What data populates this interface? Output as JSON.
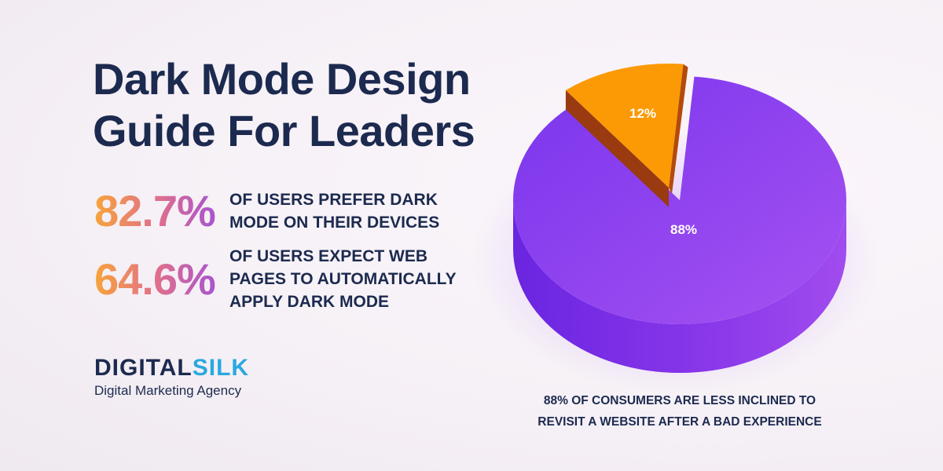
{
  "title_lines": [
    "Dark Mode Design",
    "Guide For Leaders"
  ],
  "stats": [
    {
      "value": "82.7%",
      "lines": [
        "OF USERS PREFER DARK",
        "MODE ON THEIR DEVICES"
      ]
    },
    {
      "value": "64.6%",
      "lines": [
        "OF USERS EXPECT WEB",
        "PAGES TO AUTOMATICALLY",
        "APPLY DARK MODE"
      ]
    }
  ],
  "logo": {
    "brand_part1": "DIGITAL",
    "brand_part2": "SILK",
    "tagline": "Digital Marketing Agency"
  },
  "caption_lines": [
    "88% OF CONSUMERS ARE LESS INCLINED TO",
    "REVISIT A WEBSITE AFTER A BAD EXPERIENCE"
  ],
  "chart_data": {
    "type": "pie",
    "style": "3d-exploded",
    "slices": [
      {
        "label": "88%",
        "value": 88,
        "color": "#8b3cf0"
      },
      {
        "label": "12%",
        "value": 12,
        "color": "#fb9a05"
      }
    ]
  }
}
